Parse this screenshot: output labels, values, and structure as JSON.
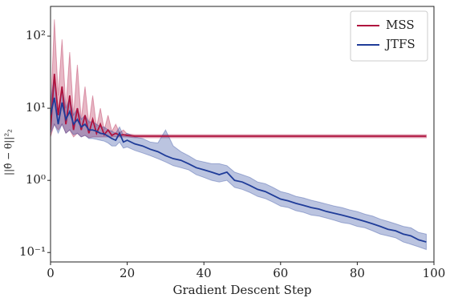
{
  "chart_data": {
    "type": "line",
    "log_y": true,
    "xlabel": "Gradient Descent Step",
    "ylabel": "||θ̂ − θ||²₂",
    "xlim": [
      0,
      100
    ],
    "xticks": [
      0,
      20,
      40,
      60,
      80,
      100
    ],
    "ylim": [
      0.074,
      258
    ],
    "yticks": [
      {
        "value": 0.1,
        "label": "10⁻¹"
      },
      {
        "value": 1,
        "label": "10⁰"
      },
      {
        "value": 10,
        "label": "10¹"
      },
      {
        "value": 100,
        "label": "10²"
      }
    ],
    "legend": "upper right",
    "x": [
      0,
      1,
      2,
      3,
      4,
      5,
      6,
      7,
      8,
      9,
      10,
      11,
      12,
      13,
      14,
      15,
      16,
      17,
      18,
      19,
      20,
      22,
      24,
      26,
      28,
      30,
      32,
      34,
      36,
      38,
      40,
      42,
      44,
      46,
      48,
      50,
      52,
      54,
      56,
      58,
      60,
      62,
      64,
      66,
      68,
      70,
      72,
      74,
      76,
      78,
      80,
      82,
      84,
      86,
      88,
      90,
      92,
      94,
      96,
      98
    ],
    "series": [
      {
        "name": "MSS",
        "color": "#b0123e",
        "values": [
          5,
          30,
          8,
          20,
          6,
          15,
          5,
          10,
          5,
          8,
          4.5,
          7,
          4.5,
          6,
          4.3,
          5,
          4.2,
          4.5,
          4.2,
          4.3,
          4.2,
          4.1,
          4.1,
          4.1,
          4.1,
          4.1,
          4.1,
          4.1,
          4.1,
          4.1,
          4.1,
          4.1,
          4.1,
          4.1,
          4.1,
          4.1,
          4.1,
          4.1,
          4.1,
          4.1,
          4.1,
          4.1,
          4.1,
          4.1,
          4.1,
          4.1,
          4.1,
          4.1,
          4.1,
          4.1,
          4.1,
          4.1,
          4.1,
          4.1,
          4.1,
          4.1,
          4.1,
          4.1,
          4.1,
          4.1
        ],
        "upper": [
          8,
          170,
          15,
          90,
          10,
          60,
          8,
          40,
          7,
          20,
          6,
          15,
          5.5,
          10,
          5,
          8,
          4.8,
          6,
          4.6,
          5,
          4.4,
          4.3,
          4.3,
          4.3,
          4.3,
          4.3,
          4.3,
          4.3,
          4.3,
          4.3,
          4.3,
          4.3,
          4.3,
          4.3,
          4.3,
          4.3,
          4.3,
          4.3,
          4.3,
          4.3,
          4.3,
          4.3,
          4.3,
          4.3,
          4.3,
          4.3,
          4.3,
          4.3,
          4.3,
          4.3,
          4.3,
          4.3,
          4.3,
          4.3,
          4.3,
          4.3,
          4.3,
          4.3,
          4.3,
          4.3
        ],
        "lower": [
          4,
          6,
          5,
          6,
          4.5,
          5,
          4,
          4.5,
          4,
          4.2,
          3.9,
          4,
          4,
          4,
          4,
          4,
          4,
          4,
          4,
          4,
          4,
          3.9,
          3.9,
          3.9,
          3.9,
          3.9,
          3.9,
          3.9,
          3.9,
          3.9,
          3.9,
          3.9,
          3.9,
          3.9,
          3.9,
          3.9,
          3.9,
          3.9,
          3.9,
          3.9,
          3.9,
          3.9,
          3.9,
          3.9,
          3.9,
          3.9,
          3.9,
          3.9,
          3.9,
          3.9,
          3.9,
          3.9,
          3.9,
          3.9,
          3.9,
          3.9,
          3.9,
          3.9,
          3.9,
          3.9
        ]
      },
      {
        "name": "JTFS",
        "color": "#1f3c99",
        "values": [
          8,
          14,
          6,
          12,
          7,
          9,
          6,
          7,
          5.5,
          6,
          5,
          5,
          4.8,
          4.5,
          4.4,
          4.1,
          3.8,
          3.6,
          4.5,
          3.4,
          3.6,
          3.2,
          3.0,
          2.7,
          2.5,
          2.2,
          2.0,
          1.9,
          1.7,
          1.5,
          1.4,
          1.3,
          1.2,
          1.3,
          1.0,
          0.95,
          0.85,
          0.75,
          0.7,
          0.62,
          0.55,
          0.52,
          0.48,
          0.45,
          0.42,
          0.4,
          0.37,
          0.35,
          0.33,
          0.31,
          0.29,
          0.27,
          0.25,
          0.23,
          0.21,
          0.2,
          0.18,
          0.17,
          0.15,
          0.14
        ],
        "upper": [
          12,
          30,
          9,
          20,
          10,
          14,
          8,
          10,
          7,
          8,
          6.5,
          6.5,
          6,
          5.5,
          5.5,
          5,
          4.8,
          4.5,
          5.5,
          4.2,
          4.5,
          4.0,
          3.8,
          3.4,
          3.3,
          5.0,
          3.0,
          2.5,
          2.2,
          1.9,
          1.8,
          1.7,
          1.7,
          1.6,
          1.3,
          1.2,
          1.1,
          0.95,
          0.9,
          0.8,
          0.7,
          0.66,
          0.6,
          0.57,
          0.53,
          0.5,
          0.47,
          0.44,
          0.42,
          0.39,
          0.37,
          0.34,
          0.32,
          0.29,
          0.27,
          0.25,
          0.23,
          0.22,
          0.19,
          0.18
        ],
        "lower": [
          4.5,
          6,
          4.5,
          6,
          4.5,
          5,
          4.3,
          4.5,
          4,
          4.2,
          3.8,
          3.8,
          3.7,
          3.6,
          3.5,
          3.3,
          3.0,
          3.0,
          3.4,
          2.8,
          2.9,
          2.6,
          2.4,
          2.2,
          2.0,
          1.8,
          1.6,
          1.5,
          1.4,
          1.2,
          1.1,
          1.0,
          0.95,
          1.0,
          0.8,
          0.75,
          0.68,
          0.6,
          0.56,
          0.5,
          0.44,
          0.42,
          0.38,
          0.36,
          0.33,
          0.32,
          0.3,
          0.28,
          0.26,
          0.25,
          0.23,
          0.22,
          0.2,
          0.18,
          0.17,
          0.16,
          0.14,
          0.13,
          0.12,
          0.11
        ]
      }
    ]
  }
}
